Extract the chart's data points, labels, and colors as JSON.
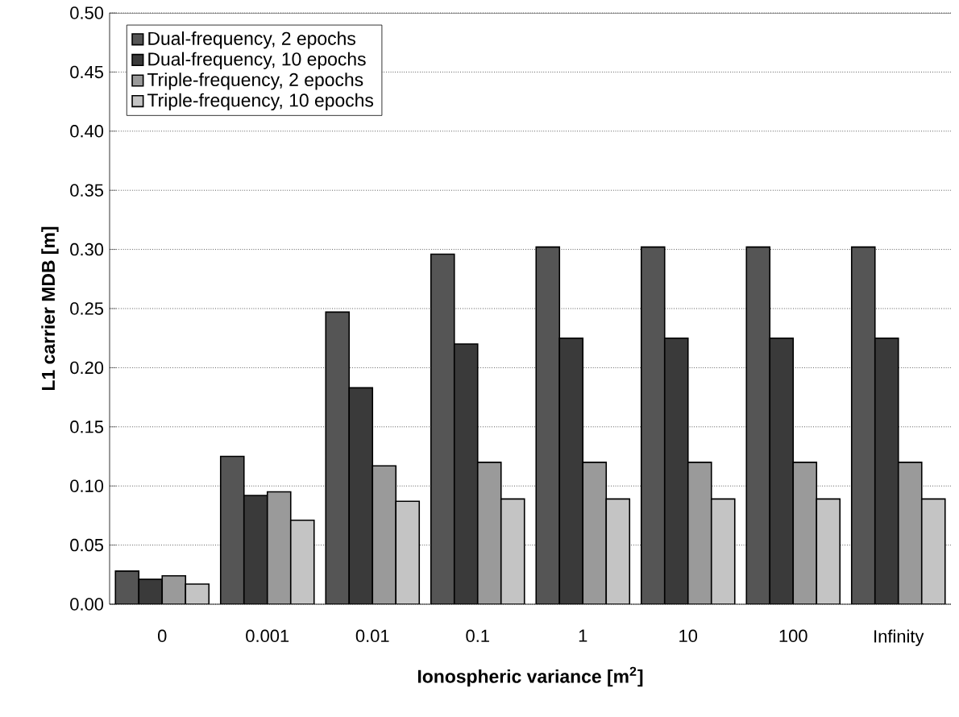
{
  "chart_data": {
    "type": "bar",
    "xlabel": "Ionospheric variance [m$^{2}$]",
    "ylabel": "L1 carrier MDB [m]",
    "categories": [
      "0",
      "0.001",
      "0.01",
      "0.1",
      "1",
      "10",
      "100",
      "Infinity"
    ],
    "series": [
      {
        "name": "Dual-frequency, 2 epochs",
        "color": "#555555",
        "values": [
          0.028,
          0.125,
          0.247,
          0.296,
          0.302,
          0.302,
          0.302,
          0.302
        ]
      },
      {
        "name": "Dual-frequency, 10 epochs",
        "color": "#3a3a3a",
        "values": [
          0.021,
          0.092,
          0.183,
          0.22,
          0.225,
          0.225,
          0.225,
          0.225
        ]
      },
      {
        "name": "Triple-frequency, 2 epochs",
        "color": "#9a9a9a",
        "values": [
          0.024,
          0.095,
          0.117,
          0.12,
          0.12,
          0.12,
          0.12,
          0.12
        ]
      },
      {
        "name": "Triple-frequency, 10 epochs",
        "color": "#c4c4c4",
        "values": [
          0.017,
          0.071,
          0.087,
          0.089,
          0.089,
          0.089,
          0.089,
          0.089
        ]
      }
    ],
    "ylim": [
      0,
      0.5
    ],
    "yticks": [
      {
        "value": 0,
        "label": "0.00"
      },
      {
        "value": 0.05,
        "label": "0.05"
      },
      {
        "value": 0.1,
        "label": "0.10"
      },
      {
        "value": 0.15,
        "label": "0.15"
      },
      {
        "value": 0.2,
        "label": "0.20"
      },
      {
        "value": 0.25,
        "label": "0.25"
      },
      {
        "value": 0.3,
        "label": "0.30"
      },
      {
        "value": 0.35,
        "label": "0.35"
      },
      {
        "value": 0.4,
        "label": "0.40"
      },
      {
        "value": 0.45,
        "label": "0.45"
      },
      {
        "value": 0.5,
        "label": "0.50"
      }
    ],
    "grid": "y",
    "legend": "top left"
  }
}
